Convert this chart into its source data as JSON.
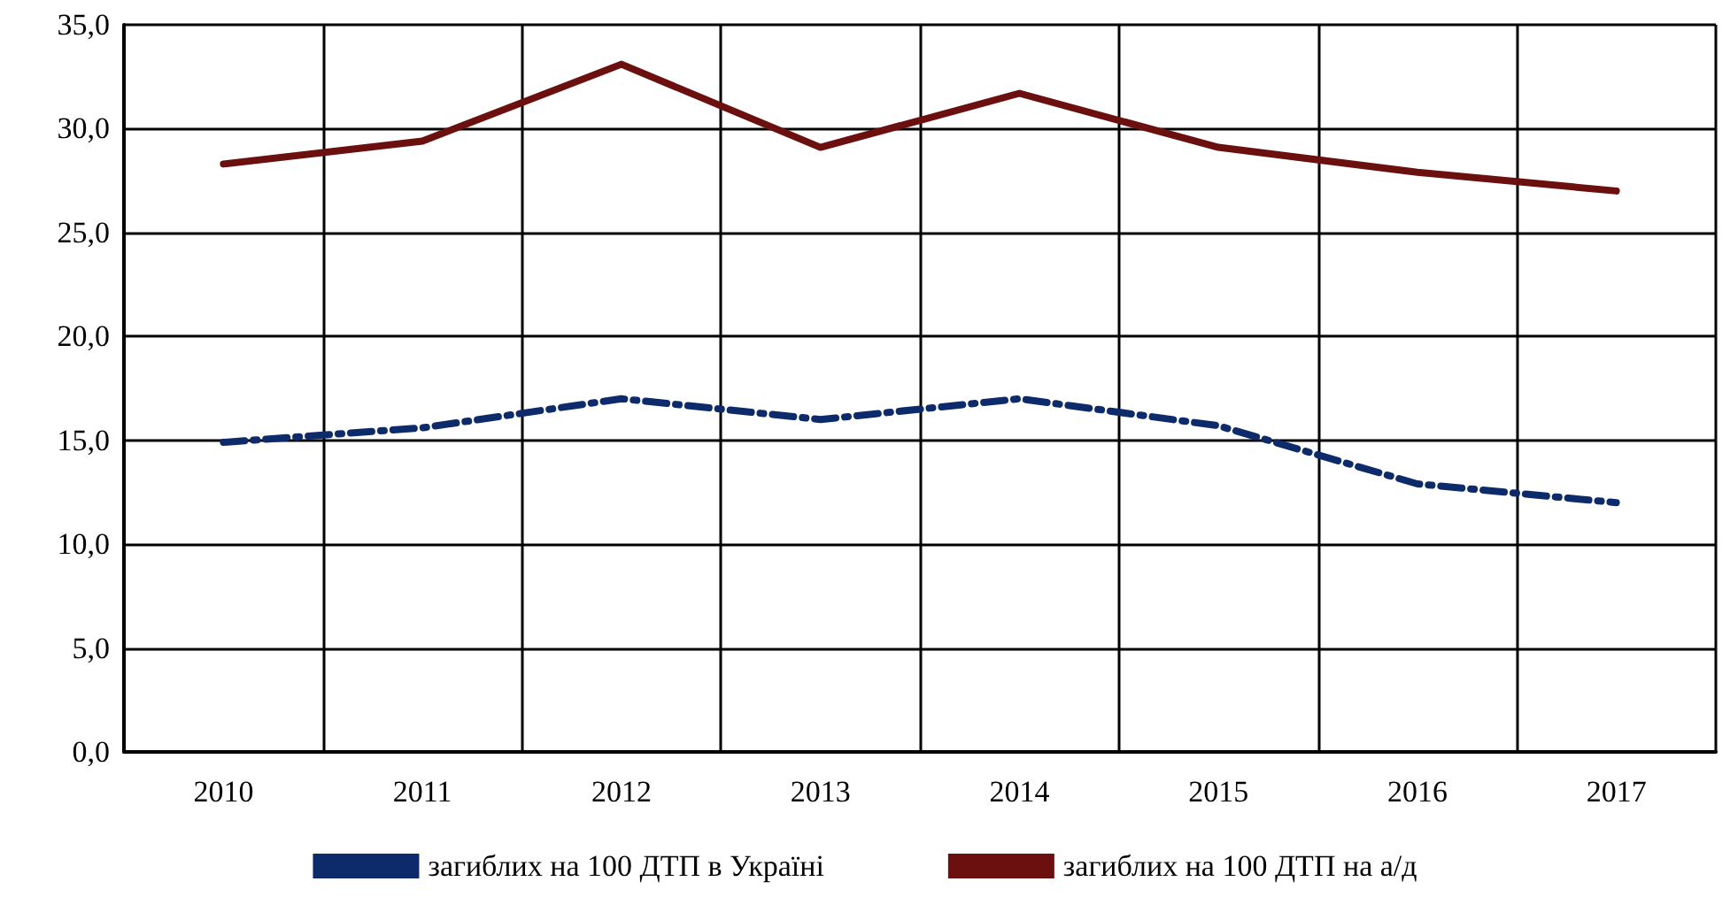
{
  "chart_data": {
    "type": "line",
    "categories": [
      "2010",
      "2011",
      "2012",
      "2013",
      "2014",
      "2015",
      "2016",
      "2017"
    ],
    "series": [
      {
        "name": "загиблих на 100 ДТП в Україні",
        "color": "#0d2a6b",
        "line_style": "dashed",
        "values": [
          14.9,
          15.6,
          17.0,
          16.0,
          17.0,
          15.7,
          12.9,
          12.0
        ]
      },
      {
        "name": "загиблих на 100 ДТП на а/д",
        "color": "#6b0f0f",
        "line_style": "solid",
        "values": [
          28.3,
          29.4,
          33.1,
          29.1,
          31.7,
          29.1,
          27.9,
          27.0
        ]
      }
    ],
    "ylim": [
      0,
      35
    ],
    "yticks": [
      {
        "value": 0,
        "label": "0,0"
      },
      {
        "value": 5,
        "label": "5,0"
      },
      {
        "value": 10,
        "label": "10,0"
      },
      {
        "value": 15,
        "label": "15,0"
      },
      {
        "value": 20,
        "label": "20,0"
      },
      {
        "value": 25,
        "label": "25,0"
      },
      {
        "value": 30,
        "label": "30,0"
      },
      {
        "value": 35,
        "label": "35,0"
      }
    ],
    "grid": true,
    "legend": "bottom",
    "marker": "none"
  }
}
